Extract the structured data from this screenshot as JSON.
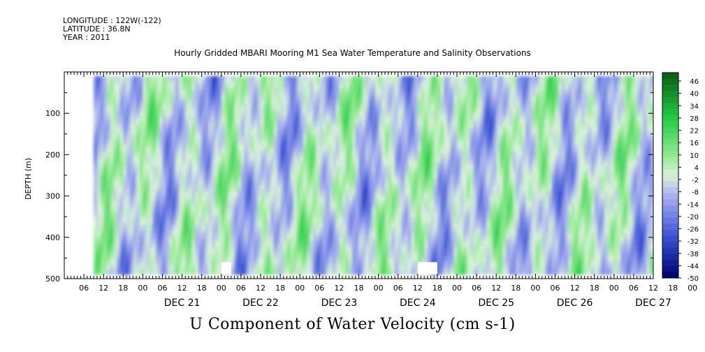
{
  "header": {
    "longitude": "LONGITUDE : 122W(-122)",
    "latitude": "LATITUDE : 36.8N",
    "year": "YEAR : 2011"
  },
  "plot_title": "Hourly Gridded MBARI Mooring M1 Sea Water Temperature and Salinity Observations",
  "main_title": "U Component of Water Velocity (cm s-1)",
  "chart_data": {
    "type": "heatmap",
    "title": "U Component of Water Velocity (cm s-1)",
    "subtitle": "Hourly Gridded MBARI Mooring M1 Sea Water Temperature and Salinity Observations",
    "xlabel": "",
    "ylabel": "DEPTH (m)",
    "x_units": "hours since 2011-12-20 00:00",
    "xlim": [
      0,
      180
    ],
    "data_xlim": [
      9,
      180
    ],
    "ylim": [
      500,
      0
    ],
    "data_ylim": [
      10,
      490
    ],
    "y_ticks": [
      100,
      200,
      300,
      400,
      500
    ],
    "x_hour_ticks": [
      "06",
      "12",
      "18",
      "00",
      "06",
      "12",
      "18",
      "00",
      "06",
      "12",
      "18",
      "00",
      "06",
      "12",
      "18",
      "00",
      "06",
      "12",
      "18",
      "00",
      "06",
      "12",
      "18",
      "00",
      "06",
      "12",
      "18",
      "00",
      "06",
      "12",
      "18",
      "00"
    ],
    "x_day_labels": [
      "DEC 21",
      "DEC 22",
      "DEC 23",
      "DEC 24",
      "DEC 25",
      "DEC 26",
      "DEC 27"
    ],
    "colorbar": {
      "labels": [
        "46",
        "40",
        "34",
        "28",
        "22",
        "16",
        "10",
        "4",
        "-2",
        "-8",
        "-14",
        "-20",
        "-26",
        "-32",
        "-38",
        "-44",
        "-50"
      ],
      "range": [
        -50,
        50
      ],
      "colors": {
        "strong_negative": "#00006e",
        "negative": "#3a52d6",
        "weak_negative": "#a8b2ee",
        "near_zero": "#d8f2d8",
        "weak_positive": "#8ee88e",
        "positive": "#22cc44",
        "strong_positive": "#0a5a14"
      }
    },
    "missing_data_gaps": [
      {
        "x": [
          48,
          51
        ],
        "y": [
          460,
          490
        ]
      },
      {
        "x": [
          108,
          114
        ],
        "y": [
          460,
          490
        ]
      }
    ]
  }
}
